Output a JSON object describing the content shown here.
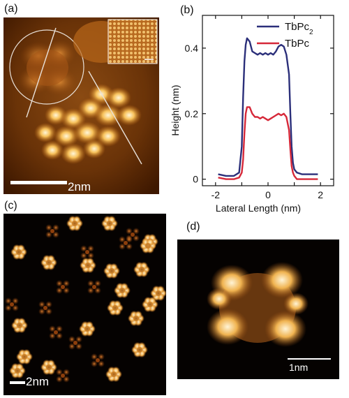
{
  "panels": {
    "a": {
      "label": "(a)",
      "scale_label": "2nm"
    },
    "b": {
      "label": "(b)"
    },
    "c": {
      "label": "(c)",
      "scale_label": "2nm"
    },
    "d": {
      "label": "(d)",
      "scale_label": "1nm"
    }
  },
  "colors": {
    "series_1": "#2b2f7a",
    "series_2": "#d62839"
  },
  "chart_data": {
    "type": "line",
    "xlabel": "Lateral Length (nm)",
    "ylabel": "Height (nm)",
    "xlim": [
      -2.5,
      2.5
    ],
    "ylim": [
      -0.02,
      0.5
    ],
    "xticks": [
      -2,
      -1,
      0,
      1,
      2
    ],
    "xtick_labels": [
      "-2",
      "-1",
      "0",
      "1",
      "2"
    ],
    "yticks": [
      0,
      0.2,
      0.4
    ],
    "ytick_labels": [
      "0",
      "0.2",
      "0.4"
    ],
    "legend_position": "top-right",
    "grid": false,
    "series": [
      {
        "name": "TbPc2",
        "legend_text": "TbPc",
        "legend_sub": "2",
        "x": [
          -1.9,
          -1.6,
          -1.3,
          -1.1,
          -1.0,
          -0.95,
          -0.9,
          -0.85,
          -0.8,
          -0.7,
          -0.6,
          -0.5,
          -0.4,
          -0.3,
          -0.2,
          -0.1,
          0.0,
          0.1,
          0.2,
          0.3,
          0.4,
          0.5,
          0.6,
          0.7,
          0.8,
          0.85,
          0.9,
          0.95,
          1.0,
          1.1,
          1.3,
          1.6,
          1.9
        ],
        "values": [
          0.015,
          0.01,
          0.01,
          0.02,
          0.1,
          0.25,
          0.36,
          0.41,
          0.43,
          0.42,
          0.39,
          0.385,
          0.38,
          0.385,
          0.38,
          0.385,
          0.38,
          0.385,
          0.38,
          0.39,
          0.405,
          0.41,
          0.405,
          0.38,
          0.32,
          0.2,
          0.1,
          0.05,
          0.03,
          0.02,
          0.015,
          0.015,
          0.015
        ]
      },
      {
        "name": "TbPc",
        "legend_text": "TbPc",
        "legend_sub": "",
        "x": [
          -1.9,
          -1.6,
          -1.3,
          -1.1,
          -1.0,
          -0.95,
          -0.9,
          -0.85,
          -0.8,
          -0.7,
          -0.6,
          -0.5,
          -0.4,
          -0.3,
          -0.2,
          -0.1,
          0.0,
          0.1,
          0.2,
          0.3,
          0.4,
          0.5,
          0.6,
          0.7,
          0.8,
          0.85,
          0.9,
          0.95,
          1.0,
          1.1,
          1.3,
          1.6,
          1.9
        ],
        "values": [
          0.005,
          0.0,
          0.0,
          0.005,
          0.02,
          0.06,
          0.14,
          0.2,
          0.22,
          0.22,
          0.2,
          0.19,
          0.19,
          0.185,
          0.19,
          0.185,
          0.18,
          0.185,
          0.19,
          0.195,
          0.2,
          0.195,
          0.2,
          0.19,
          0.15,
          0.09,
          0.04,
          0.02,
          0.01,
          0.0,
          0.0,
          0.0,
          0.0
        ]
      }
    ]
  }
}
